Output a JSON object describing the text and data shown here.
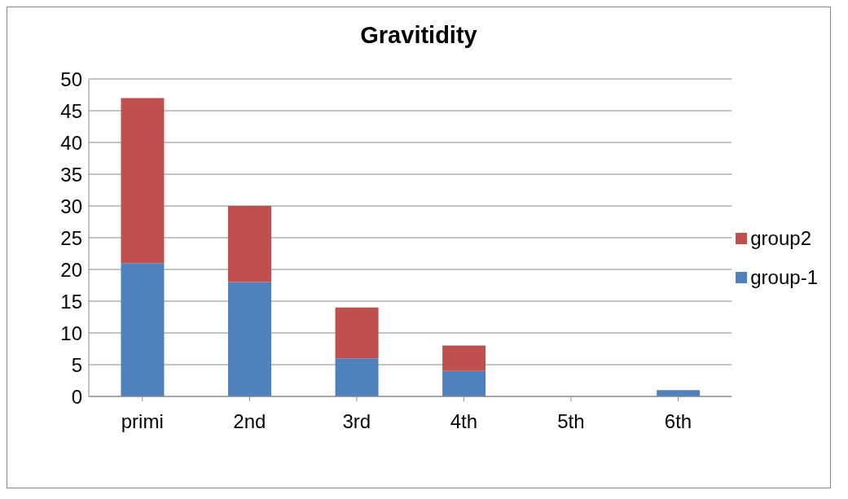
{
  "chart_data": {
    "type": "bar",
    "title": "Gravitidity",
    "categories": [
      "primi",
      "2nd",
      "3rd",
      "4th",
      "5th",
      "6th"
    ],
    "stacked": true,
    "series": [
      {
        "name": "group-1",
        "color": "#4f81bd",
        "values": [
          21,
          18,
          6,
          4,
          0,
          1
        ]
      },
      {
        "name": "group2",
        "color": "#c0504d",
        "values": [
          26,
          12,
          8,
          4,
          0,
          0
        ]
      }
    ],
    "ylim": [
      0,
      50
    ],
    "yticks": [
      0,
      5,
      10,
      15,
      20,
      25,
      30,
      35,
      40,
      45,
      50
    ],
    "grid": "y",
    "legend": "right"
  }
}
